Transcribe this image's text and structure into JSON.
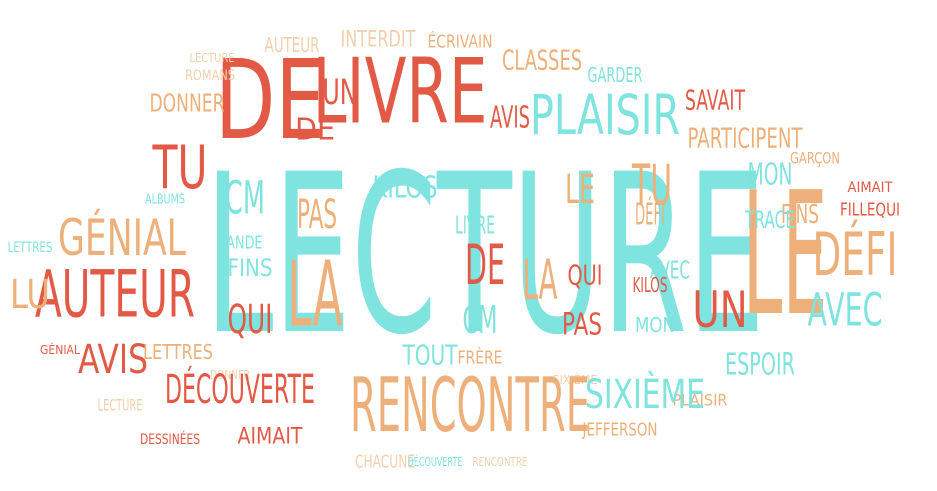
{
  "words": [
    {
      "text": "LECTURE",
      "color": "#7fe3df"
    },
    {
      "text": "LE",
      "color": "#eeb07a"
    },
    {
      "text": "DE",
      "color": "#e25a45"
    },
    {
      "text": "LIVRE",
      "color": "#e25a45"
    },
    {
      "text": "PLAISIR",
      "color": "#7fe3df"
    },
    {
      "text": "TU",
      "color": "#e25a45"
    },
    {
      "text": "AUTEUR",
      "color": "#e25a45"
    },
    {
      "text": "GÉNIAL",
      "color": "#eeb07a"
    },
    {
      "text": "LU",
      "color": "#eeb07a"
    },
    {
      "text": "AVIS",
      "color": "#e25a45"
    },
    {
      "text": "LETTRES",
      "color": "#eeb07a"
    },
    {
      "text": "DONNER",
      "color": "#eeb07a"
    },
    {
      "text": "ROMANS",
      "color": "#f3cfae"
    },
    {
      "text": "LECTURE",
      "color": "#f3cfae"
    },
    {
      "text": "AUTEUR",
      "color": "#f3cfae"
    },
    {
      "text": "INTERDIT",
      "color": "#f3cfae"
    },
    {
      "text": "ÉCRIVAIN",
      "color": "#eeb07a"
    },
    {
      "text": "CLASSES",
      "color": "#eeb07a"
    },
    {
      "text": "GARDER",
      "color": "#7fe3df"
    },
    {
      "text": "UN",
      "color": "#e25a45"
    },
    {
      "text": "AVIS",
      "color": "#e25a45"
    },
    {
      "text": "DE",
      "color": "#e25a45"
    },
    {
      "text": "SAVAIT",
      "color": "#e25a45"
    },
    {
      "text": "PARTICIPENT",
      "color": "#eeb07a"
    },
    {
      "text": "GARÇON",
      "color": "#eeb07a"
    },
    {
      "text": "MON",
      "color": "#7fe3df"
    },
    {
      "text": "FINS",
      "color": "#eeb07a"
    },
    {
      "text": "FILLEQUI",
      "color": "#e25a45"
    },
    {
      "text": "AIMAIT",
      "color": "#e25a45"
    },
    {
      "text": "BANDE",
      "color": "#7fe3df"
    },
    {
      "text": "FINS",
      "color": "#7fe3df"
    },
    {
      "text": "QUI",
      "color": "#e25a45"
    },
    {
      "text": "LA",
      "color": "#eeb07a"
    },
    {
      "text": "PAS",
      "color": "#eeb07a"
    },
    {
      "text": "KILOS",
      "color": "#7fe3df"
    },
    {
      "text": "CM",
      "color": "#7fe3df"
    },
    {
      "text": "LA",
      "color": "#eeb07a"
    },
    {
      "text": "DE",
      "color": "#e25a45"
    },
    {
      "text": "QUI",
      "color": "#e25a45"
    },
    {
      "text": "PAS",
      "color": "#e25a45"
    },
    {
      "text": "TOUT",
      "color": "#7fe3df"
    },
    {
      "text": "FRÈRE",
      "color": "#eeb07a"
    },
    {
      "text": "DÉFI",
      "color": "#eeb07a"
    },
    {
      "text": "LE",
      "color": "#eeb07a"
    },
    {
      "text": "TU",
      "color": "#eeb07a"
    },
    {
      "text": "AVEC",
      "color": "#7fe3df"
    },
    {
      "text": "KILOS",
      "color": "#e25a45"
    },
    {
      "text": "MON",
      "color": "#7fe3df"
    },
    {
      "text": "ESPOIR",
      "color": "#7fe3df"
    },
    {
      "text": "JEFFERSON",
      "color": "#eeb07a"
    },
    {
      "text": "PLAISIR",
      "color": "#eeb07a"
    },
    {
      "text": "AIMAIT",
      "color": "#e25a45"
    },
    {
      "text": "CHACUNE",
      "color": "#f3cfae"
    },
    {
      "text": "DÉCOUVERTE",
      "color": "#7fe3df"
    },
    {
      "text": "RENCONTRE",
      "color": "#f3cfae"
    },
    {
      "text": "DESSINÉES",
      "color": "#e25a45"
    },
    {
      "text": "LECTURE",
      "color": "#f3cfae"
    },
    {
      "text": "ALBUMS",
      "color": "#7fe3df"
    },
    {
      "text": "LETTRES",
      "color": "#7fe3df"
    },
    {
      "text": "GÉNIAL",
      "color": "#e25a45"
    },
    {
      "text": "CM",
      "color": "#7fe3df"
    },
    {
      "text": "LIVRE",
      "color": "#7fe3df"
    },
    {
      "text": "DONNER",
      "color": "#f3cfae"
    },
    {
      "text": "TRACE",
      "color": "#7fe3df"
    },
    {
      "text": "SIXIÈME",
      "color": "#f3cfae"
    },
    {
      "text": "RENCONTRE",
      "color": "#eeb07a"
    },
    {
      "text": "DÉCOUVERTE",
      "color": "#e25a45"
    },
    {
      "text": "SIXIÈME",
      "color": "#7fe3df"
    },
    {
      "text": "UN",
      "color": "#e25a45"
    },
    {
      "text": "DÉFI",
      "color": "#eeb07a"
    },
    {
      "text": "AVEC",
      "color": "#7fe3df"
    }
  ]
}
